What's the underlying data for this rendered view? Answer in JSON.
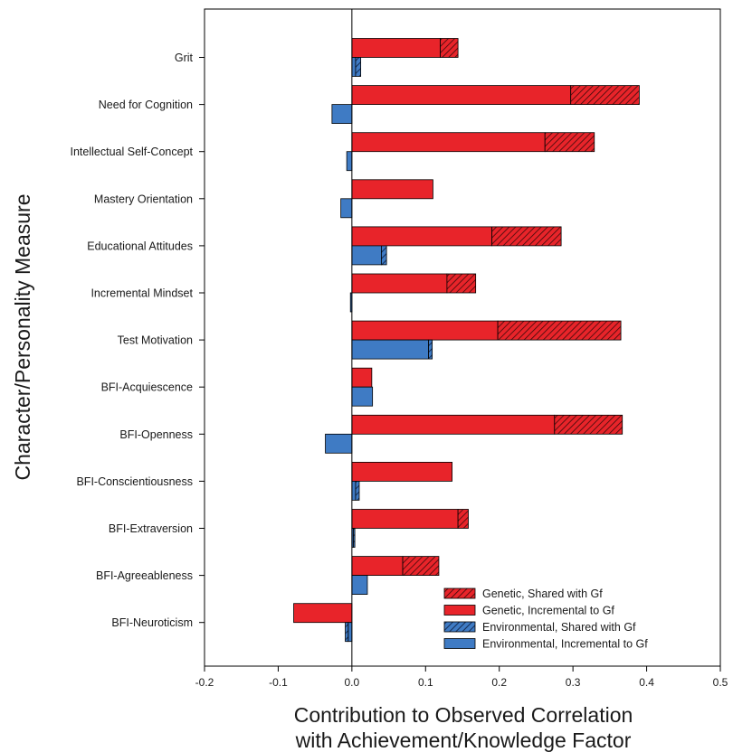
{
  "chart_data": {
    "type": "bar",
    "orientation": "horizontal",
    "stacked": true,
    "title": "",
    "xlabel_line1": "Contribution to Observed Correlation",
    "xlabel_line2": "with Achievement/Knowledge Factor",
    "ylabel": "Character/Personality Measure",
    "xlim": [
      -0.2,
      0.5
    ],
    "xticks": [
      -0.2,
      -0.1,
      0.0,
      0.1,
      0.2,
      0.3,
      0.4,
      0.5
    ],
    "xtick_labels": [
      "-0.2",
      "-0.1",
      "0.0",
      "0.1",
      "0.2",
      "0.3",
      "0.4",
      "0.5"
    ],
    "categories": [
      "Grit",
      "Need for Cognition",
      "Intellectual Self-Concept",
      "Mastery Orientation",
      "Educational Attitudes",
      "Incremental Mindset",
      "Test Motivation",
      "BFI-Acquiescence",
      "BFI-Openness",
      "BFI-Conscientiousness",
      "BFI-Extraversion",
      "BFI-Agreeableness",
      "BFI-Neuroticism"
    ],
    "series": [
      {
        "name": "Genetic, Incremental to Gf",
        "group": "genetic",
        "pattern": "solid",
        "values": [
          0.12,
          0.297,
          0.262,
          0.11,
          0.19,
          0.129,
          0.198,
          0.027,
          0.275,
          0.136,
          0.144,
          0.069,
          -0.079
        ]
      },
      {
        "name": "Genetic, Shared with Gf",
        "group": "genetic",
        "pattern": "hatched",
        "values": [
          0.024,
          0.093,
          0.067,
          0.0,
          0.094,
          0.039,
          0.167,
          0.0,
          0.092,
          0.0,
          0.014,
          0.049,
          0.0
        ]
      },
      {
        "name": "Environmental, Incremental to Gf",
        "group": "environmental",
        "pattern": "solid",
        "values": [
          0.005,
          -0.027,
          -0.007,
          -0.015,
          0.04,
          -0.002,
          0.104,
          0.028,
          -0.036,
          0.005,
          0.002,
          0.021,
          -0.005
        ]
      },
      {
        "name": "Environmental, Shared with Gf",
        "group": "environmental",
        "pattern": "hatched",
        "values": [
          0.007,
          0.0,
          0.0,
          0.0,
          0.007,
          0.0,
          0.005,
          0.0,
          0.0,
          0.005,
          0.002,
          0.0,
          -0.004
        ]
      }
    ],
    "legend": {
      "placement": "bottom-right",
      "entries": [
        {
          "label": "Genetic, Shared with Gf",
          "color": "#e8242a",
          "pattern": "hatched"
        },
        {
          "label": "Genetic, Incremental to Gf",
          "color": "#e8242a",
          "pattern": "solid"
        },
        {
          "label": "Environmental, Shared with Gf",
          "color": "#3f7bc4",
          "pattern": "hatched"
        },
        {
          "label": "Environmental, Incremental to Gf",
          "color": "#3f7bc4",
          "pattern": "solid"
        }
      ]
    },
    "colors": {
      "genetic": "#e8242a",
      "environmental": "#3f7bc4"
    },
    "grid": false,
    "zero_line": true
  }
}
